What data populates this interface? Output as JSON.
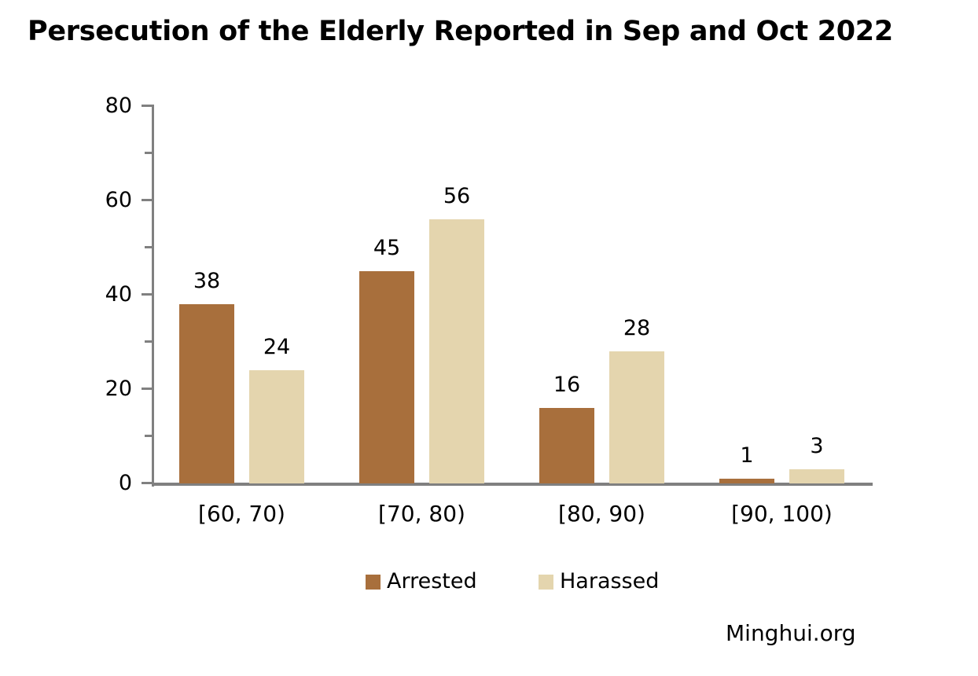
{
  "title": "Persecution of the Elderly Reported in Sep and Oct 2022",
  "source": "Minghui.org",
  "colors": {
    "arrested": "#A86F3C",
    "harassed": "#E4D5AE",
    "axis": "#808080",
    "text": "#000000",
    "background": "#FFFFFF"
  },
  "chart_data": {
    "type": "bar",
    "title": "Persecution of the Elderly Reported in Sep and Oct 2022",
    "categories": [
      "[60, 70)",
      "[70, 80)",
      "[80, 90)",
      "[90, 100)"
    ],
    "series": [
      {
        "name": "Arrested",
        "color": "#A86F3C",
        "values": [
          38,
          45,
          16,
          1
        ]
      },
      {
        "name": "Harassed",
        "color": "#E4D5AE",
        "values": [
          24,
          56,
          28,
          3
        ]
      }
    ],
    "xlabel": "",
    "ylabel": "",
    "ylim": [
      0,
      80
    ],
    "yticks_major": [
      0,
      20,
      40,
      60,
      80
    ],
    "yticks_minor": [
      10,
      30,
      50,
      70
    ],
    "grid": false,
    "data_labels": true,
    "legend_position": "bottom",
    "source_credit": "Minghui.org"
  }
}
